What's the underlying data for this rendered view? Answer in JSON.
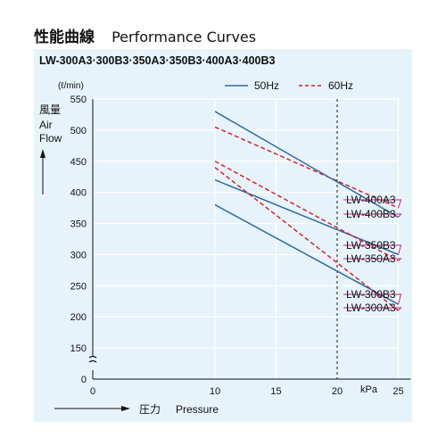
{
  "page": {
    "title_jp": "性能曲線",
    "title_en": "Performance Curves"
  },
  "chart_data": {
    "type": "line",
    "title": "LW-300A3·300B3·350A3·350B3·400A3·400B3",
    "y_unit": "(ℓ/min)",
    "ylabel_jp": "風量",
    "ylabel_en": [
      "Air",
      "Flow"
    ],
    "xlabel_jp": "圧力",
    "xlabel_en": "Pressure",
    "x_unit": "kPa",
    "x_ticks": [
      0,
      10,
      15,
      20,
      25
    ],
    "y_ticks": [
      0,
      150,
      200,
      250,
      300,
      350,
      400,
      450,
      500,
      550
    ],
    "xlim": [
      0,
      25
    ],
    "ylim_break": [
      0,
      150
    ],
    "reference_line_x": 20,
    "legend": [
      {
        "label": "50Hz",
        "style": "solid",
        "color": "#2e6aa3"
      },
      {
        "label": "60Hz",
        "style": "dashed",
        "color": "#d8232a"
      }
    ],
    "series": [
      {
        "name": "LW-400A3",
        "freq": "60Hz",
        "points": [
          [
            10,
            505
          ],
          [
            25,
            375
          ]
        ]
      },
      {
        "name": "LW-400B3",
        "freq": "50Hz",
        "points": [
          [
            10,
            530
          ],
          [
            25,
            360
          ]
        ]
      },
      {
        "name": "LW-350B3",
        "freq": "50Hz",
        "points": [
          [
            10,
            420
          ],
          [
            25,
            300
          ]
        ]
      },
      {
        "name": "LW-350A3",
        "freq": "60Hz",
        "points": [
          [
            10,
            450
          ],
          [
            25,
            290
          ]
        ]
      },
      {
        "name": "LW-300B3",
        "freq": "50Hz",
        "points": [
          [
            10,
            380
          ],
          [
            25,
            220
          ]
        ]
      },
      {
        "name": "LW-300A3",
        "freq": "60Hz",
        "points": [
          [
            10,
            440
          ],
          [
            25,
            210
          ]
        ]
      }
    ],
    "series_label_order": [
      "LW-400A3",
      "LW-400B3",
      "LW-350B3",
      "LW-350A3",
      "LW-300B3",
      "LW-300A3"
    ],
    "colors": {
      "50Hz": "#2e6aa3",
      "60Hz": "#d8232a",
      "leader": "#c0257e",
      "axis": "#111111"
    }
  }
}
